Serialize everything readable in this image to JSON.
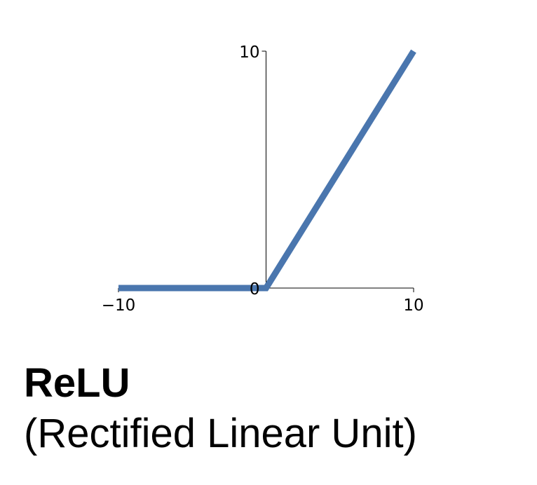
{
  "chart_data": {
    "type": "line",
    "title": "",
    "xlabel": "",
    "ylabel": "",
    "xlim": [
      -10,
      10
    ],
    "ylim": [
      0,
      10
    ],
    "x_ticks": [
      {
        "value": -10,
        "label": "−10"
      },
      {
        "value": 10,
        "label": "10"
      }
    ],
    "y_ticks": [
      {
        "value": 0,
        "label": "0"
      },
      {
        "value": 10,
        "label": "10"
      }
    ],
    "grid": false,
    "series": [
      {
        "color": "#4a76ae",
        "points": [
          {
            "x": -10,
            "y": 0
          },
          {
            "x": 0,
            "y": 0
          },
          {
            "x": 10,
            "y": 10
          }
        ]
      }
    ]
  },
  "caption": {
    "title": "ReLU",
    "subtitle": "(Rectified Linear Unit)"
  }
}
